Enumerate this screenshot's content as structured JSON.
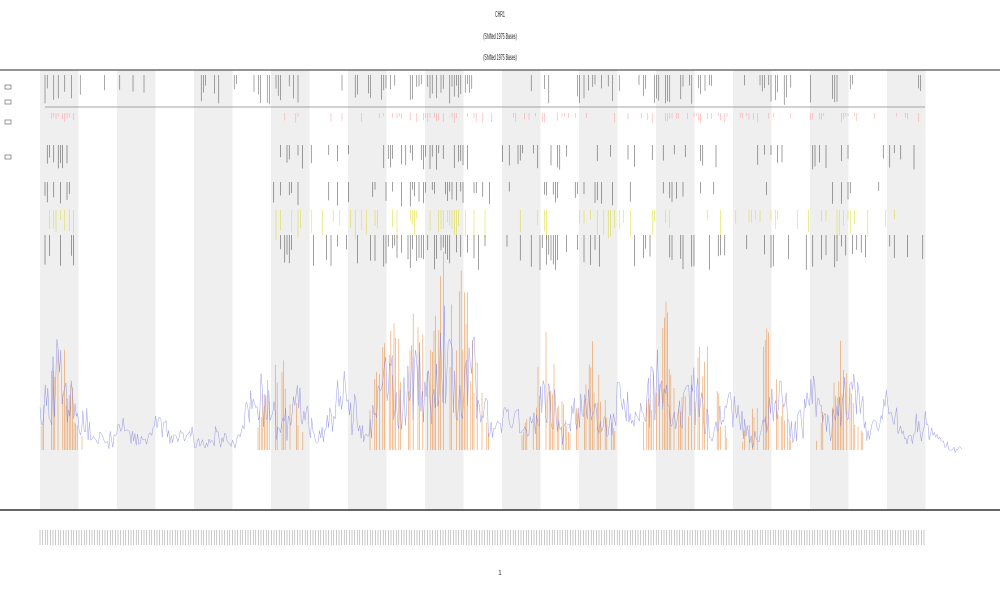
{
  "chart_data": {
    "type": "line",
    "title": "CHR1",
    "subtitle_lines": [
      "(Shifted 1975 Bases)",
      "(Shifted 1975 Bases)"
    ],
    "xlabel": "",
    "ylabel": "",
    "grid": false,
    "legend": {
      "placement": "top-left",
      "entries": []
    },
    "background_bands": "alternating light gray / white vertical bands",
    "series": [
      {
        "kind": "coverage",
        "color": "#7b7bdf",
        "peaks": [
          {
            "x": 0.02,
            "v": 0.6
          },
          {
            "x": 0.05,
            "v": 0.22
          },
          {
            "x": 0.09,
            "v": 0.15
          },
          {
            "x": 0.13,
            "v": 0.2
          },
          {
            "x": 0.16,
            "v": 0.12
          },
          {
            "x": 0.19,
            "v": 0.1
          },
          {
            "x": 0.24,
            "v": 0.45
          },
          {
            "x": 0.28,
            "v": 0.35
          },
          {
            "x": 0.33,
            "v": 0.4
          },
          {
            "x": 0.38,
            "v": 0.55
          },
          {
            "x": 0.41,
            "v": 0.62
          },
          {
            "x": 0.44,
            "v": 0.7
          },
          {
            "x": 0.47,
            "v": 0.55
          },
          {
            "x": 0.51,
            "v": 0.3
          },
          {
            "x": 0.55,
            "v": 0.4
          },
          {
            "x": 0.59,
            "v": 0.38
          },
          {
            "x": 0.63,
            "v": 0.45
          },
          {
            "x": 0.67,
            "v": 0.5
          },
          {
            "x": 0.71,
            "v": 0.42
          },
          {
            "x": 0.75,
            "v": 0.35
          },
          {
            "x": 0.8,
            "v": 0.4
          },
          {
            "x": 0.84,
            "v": 0.38
          },
          {
            "x": 0.88,
            "v": 0.45
          },
          {
            "x": 0.92,
            "v": 0.3
          },
          {
            "x": 0.96,
            "v": 0.2
          }
        ]
      },
      {
        "kind": "signal",
        "color": "#e8822a",
        "peaks": [
          {
            "x": 0.02,
            "v": 0.45
          },
          {
            "x": 0.26,
            "v": 0.55
          },
          {
            "x": 0.38,
            "v": 0.6
          },
          {
            "x": 0.41,
            "v": 0.65
          },
          {
            "x": 0.44,
            "v": 0.75
          },
          {
            "x": 0.46,
            "v": 0.7
          },
          {
            "x": 0.55,
            "v": 0.45
          },
          {
            "x": 0.6,
            "v": 0.4
          },
          {
            "x": 0.68,
            "v": 0.55
          },
          {
            "x": 0.72,
            "v": 0.5
          },
          {
            "x": 0.79,
            "v": 0.45
          },
          {
            "x": 0.87,
            "v": 0.4
          }
        ]
      }
    ],
    "track_colors": [
      "#ff8a8a",
      "#222222",
      "#222222",
      "#d4d400",
      "#222222"
    ],
    "x_tick_labels_note": "dense unreadable tick labels",
    "x_axis_caption": "1"
  }
}
